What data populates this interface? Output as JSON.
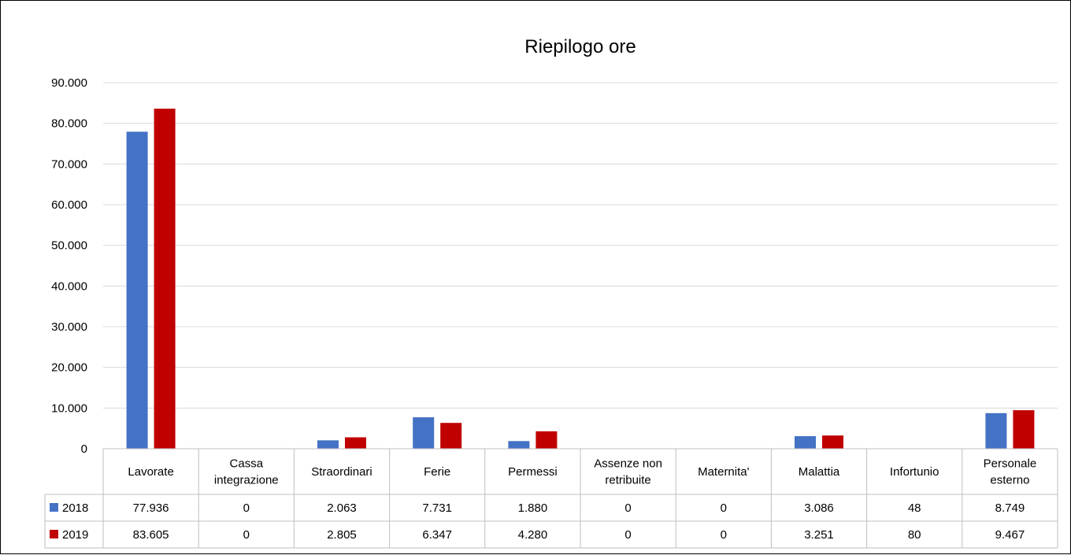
{
  "chart_data": {
    "type": "bar",
    "title": "Riepilogo ore",
    "categories": [
      "Lavorate",
      "Cassa integrazione",
      "Straordinari",
      "Ferie",
      "Permessi",
      "Assenze non retribuite",
      "Maternita'",
      "Malattia",
      "Infortunio",
      "Personale esterno"
    ],
    "category_lines": [
      [
        "Lavorate"
      ],
      [
        "Cassa",
        "integrazione"
      ],
      [
        "Straordinari"
      ],
      [
        "Ferie"
      ],
      [
        "Permessi"
      ],
      [
        "Assenze non",
        "retribuite"
      ],
      [
        "Maternita'"
      ],
      [
        "Malattia"
      ],
      [
        "Infortunio"
      ],
      [
        "Personale",
        "esterno"
      ]
    ],
    "series": [
      {
        "name": "2018",
        "color": "#4472C4",
        "values": [
          77936,
          0,
          2063,
          7731,
          1880,
          0,
          0,
          3086,
          48,
          8749
        ],
        "labels": [
          "77.936",
          "0",
          "2.063",
          "7.731",
          "1.880",
          "0",
          "0",
          "3.086",
          "48",
          "8.749"
        ]
      },
      {
        "name": "2019",
        "color": "#C00000",
        "values": [
          83605,
          0,
          2805,
          6347,
          4280,
          0,
          0,
          3251,
          80,
          9467
        ],
        "labels": [
          "83.605",
          "0",
          "2.805",
          "6.347",
          "4.280",
          "0",
          "0",
          "3.251",
          "80",
          "9.467"
        ]
      }
    ],
    "ylim": [
      0,
      90000
    ],
    "yticks": [
      "0",
      "10.000",
      "20.000",
      "30.000",
      "40.000",
      "50.000",
      "60.000",
      "70.000",
      "80.000",
      "90.000"
    ],
    "grid": true,
    "legend": "data table below chart"
  }
}
